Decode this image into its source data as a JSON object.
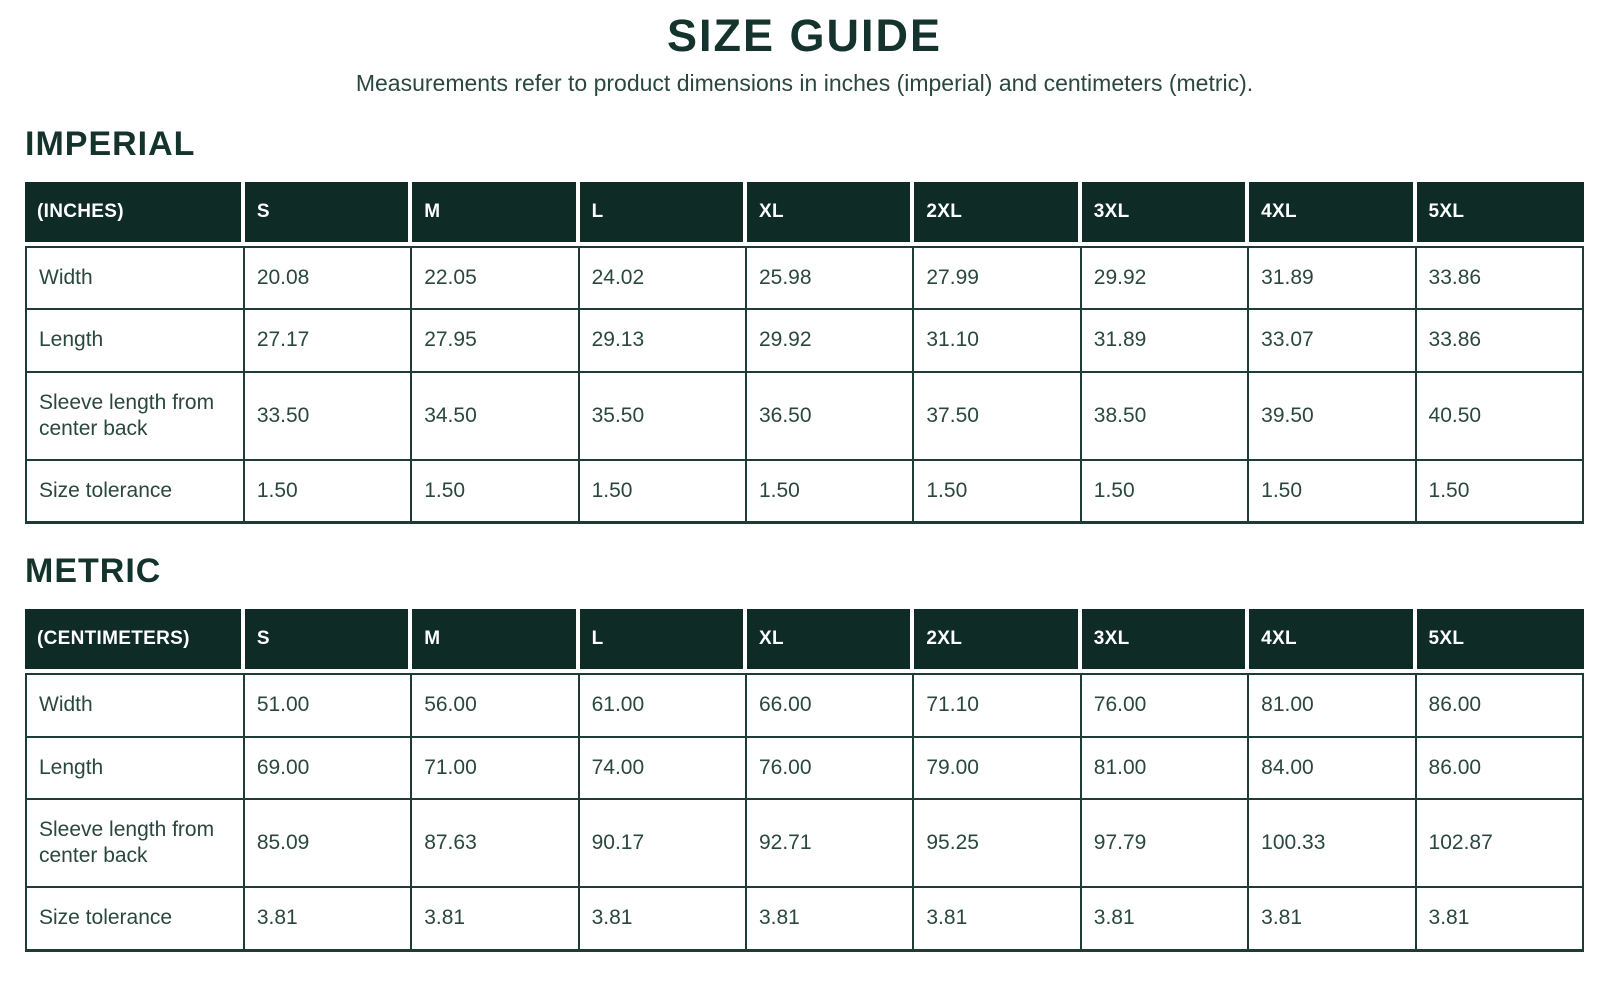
{
  "page": {
    "title": "SIZE GUIDE",
    "subtitle": "Measurements refer to product dimensions in inches (imperial) and centimeters (metric)."
  },
  "colors": {
    "header_bg": "#0e2b26",
    "header_text": "#ffffff",
    "heading_text": "#14332c",
    "body_text": "#2a473f",
    "border": "#1e3c35",
    "page_bg": "#ffffff"
  },
  "tables": [
    {
      "id": "imperial",
      "section_title": "IMPERIAL",
      "unit_label": "(INCHES)",
      "columns": [
        "S",
        "M",
        "L",
        "XL",
        "2XL",
        "3XL",
        "4XL",
        "5XL"
      ],
      "rows": [
        {
          "label": "Width",
          "values": [
            "20.08",
            "22.05",
            "24.02",
            "25.98",
            "27.99",
            "29.92",
            "31.89",
            "33.86"
          ]
        },
        {
          "label": "Length",
          "values": [
            "27.17",
            "27.95",
            "29.13",
            "29.92",
            "31.10",
            "31.89",
            "33.07",
            "33.86"
          ]
        },
        {
          "label": "Sleeve length from center back",
          "values": [
            "33.50",
            "34.50",
            "35.50",
            "36.50",
            "37.50",
            "38.50",
            "39.50",
            "40.50"
          ]
        },
        {
          "label": "Size tolerance",
          "values": [
            "1.50",
            "1.50",
            "1.50",
            "1.50",
            "1.50",
            "1.50",
            "1.50",
            "1.50"
          ]
        }
      ]
    },
    {
      "id": "metric",
      "section_title": "METRIC",
      "unit_label": "(CENTIMETERS)",
      "columns": [
        "S",
        "M",
        "L",
        "XL",
        "2XL",
        "3XL",
        "4XL",
        "5XL"
      ],
      "rows": [
        {
          "label": "Width",
          "values": [
            "51.00",
            "56.00",
            "61.00",
            "66.00",
            "71.10",
            "76.00",
            "81.00",
            "86.00"
          ]
        },
        {
          "label": "Length",
          "values": [
            "69.00",
            "71.00",
            "74.00",
            "76.00",
            "79.00",
            "81.00",
            "84.00",
            "86.00"
          ]
        },
        {
          "label": "Sleeve length from center back",
          "values": [
            "85.09",
            "87.63",
            "90.17",
            "92.71",
            "95.25",
            "97.79",
            "100.33",
            "102.87"
          ]
        },
        {
          "label": "Size tolerance",
          "values": [
            "3.81",
            "3.81",
            "3.81",
            "3.81",
            "3.81",
            "3.81",
            "3.81",
            "3.81"
          ]
        }
      ]
    }
  ]
}
